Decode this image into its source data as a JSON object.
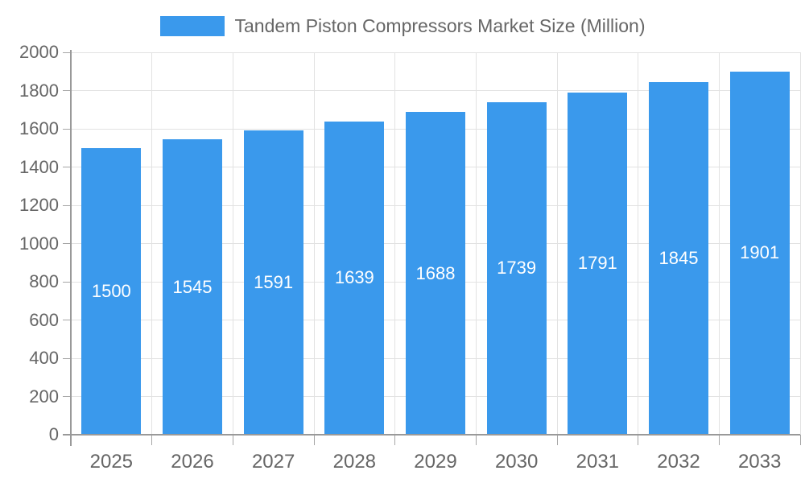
{
  "legend": {
    "label": "Tandem Piston Compressors Market Size (Million)"
  },
  "chart_data": {
    "type": "bar",
    "title": "Tandem Piston Compressors Market Size (Million)",
    "categories": [
      "2025",
      "2026",
      "2027",
      "2028",
      "2029",
      "2030",
      "2031",
      "2032",
      "2033"
    ],
    "values": [
      1500,
      1545,
      1591,
      1639,
      1688,
      1739,
      1791,
      1845,
      1901
    ],
    "xlabel": "",
    "ylabel": "",
    "ylim": [
      0,
      2000
    ],
    "ytick_step": 200,
    "grid": true,
    "legend_position": "top",
    "value_labels": "centered-inside-bars"
  },
  "colors": {
    "bar": "#3A99EC",
    "grid": "#E2E2E2",
    "axis": "#999999",
    "tick": "#A6A6A6",
    "text": "#666666",
    "value_label": "#FFFFFF",
    "background": "#FFFFFF"
  }
}
